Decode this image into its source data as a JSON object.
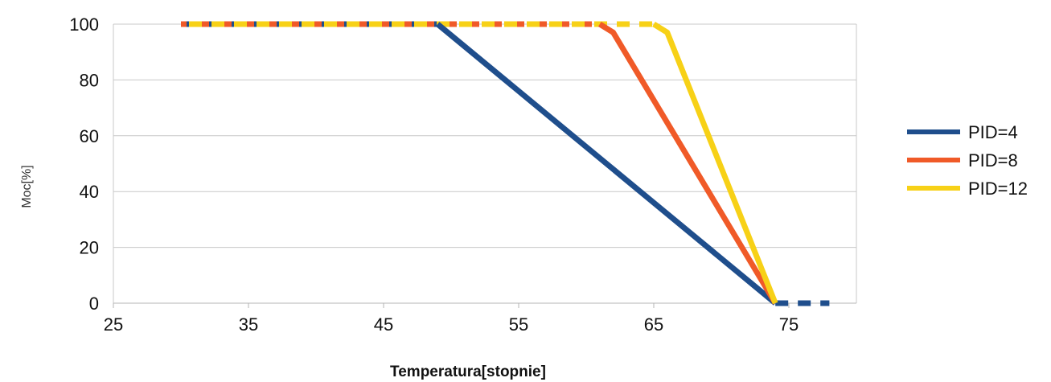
{
  "chart_data": {
    "type": "line",
    "title": "",
    "xlabel": "Temperatura[stopnie]",
    "ylabel": "Moc[%]",
    "xlim": [
      25,
      80
    ],
    "ylim": [
      0,
      100
    ],
    "x_ticks": [
      "25",
      "35",
      "45",
      "55",
      "65",
      "75"
    ],
    "y_ticks": [
      "0",
      "20",
      "40",
      "60",
      "80",
      "100"
    ],
    "grid": "horizontal",
    "legend": "right",
    "series": [
      {
        "name": "PID=4",
        "color": "#1f4e8c",
        "points": [
          [
            30,
            100
          ],
          [
            49,
            100
          ],
          [
            74,
            0
          ],
          [
            78,
            0
          ]
        ],
        "dashed_segments": [
          [
            30,
            49
          ],
          [
            74,
            78
          ]
        ]
      },
      {
        "name": "PID=8",
        "color": "#f05a28",
        "points": [
          [
            30,
            100
          ],
          [
            61,
            100
          ],
          [
            62,
            97
          ],
          [
            74,
            0
          ]
        ],
        "dashed_segments": [
          [
            30,
            61
          ]
        ]
      },
      {
        "name": "PID=12",
        "color": "#f7d117",
        "points": [
          [
            30,
            100
          ],
          [
            65,
            100
          ],
          [
            66,
            97
          ],
          [
            74,
            0
          ]
        ],
        "dashed_segments": [
          [
            30,
            65
          ]
        ]
      }
    ]
  }
}
